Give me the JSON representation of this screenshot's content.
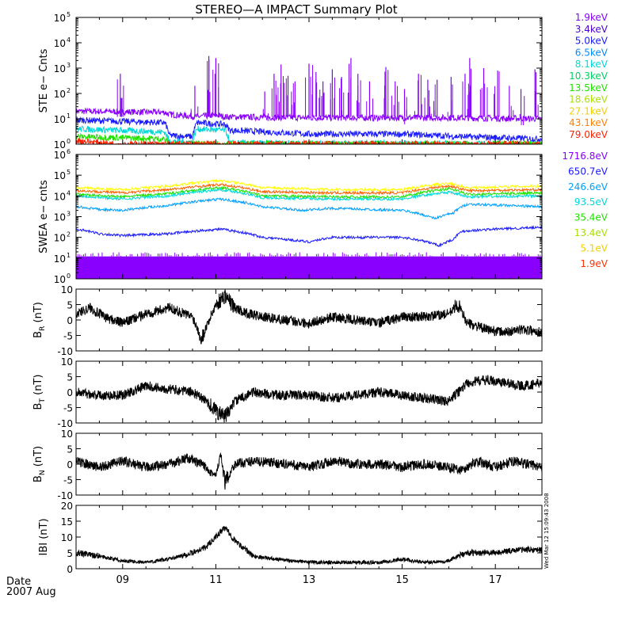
{
  "title": "STEREO—A IMPACT Summary Plot",
  "date_label": "Date",
  "date_value": "2007 Aug",
  "timestamp": "Wed Mar 12 15:09:43 2008",
  "chart_data": {
    "type": "line",
    "x_tick_labels": [
      "09",
      "11",
      "13",
      "15",
      "17"
    ],
    "x_tick_days": [
      9,
      11,
      13,
      15,
      17
    ],
    "xlim_days": [
      8.0,
      18.0
    ],
    "panels": [
      {
        "id": "ste",
        "ylabel": "STE e− Cnts",
        "yscale": "log",
        "ylim": [
          1,
          100000
        ],
        "y_tick_mantissa": [
          "10",
          "10",
          "10",
          "10",
          "10",
          "10"
        ],
        "y_tick_exponents": [
          "0",
          "1",
          "2",
          "3",
          "4",
          "5"
        ],
        "legend": [
          {
            "label": "1.9keV",
            "color": "#8a00ff"
          },
          {
            "label": "3.4keV",
            "color": "#4b00d4"
          },
          {
            "label": "5.0keV",
            "color": "#1a1aff"
          },
          {
            "label": "6.5keV",
            "color": "#008cff"
          },
          {
            "label": "8.1keV",
            "color": "#00d8d8"
          },
          {
            "label": "10.3keV",
            "color": "#00d060"
          },
          {
            "label": "13.5keV",
            "color": "#20e000"
          },
          {
            "label": "18.6keV",
            "color": "#a8e000"
          },
          {
            "label": "27.1keV",
            "color": "#f0d000"
          },
          {
            "label": "43.1keV",
            "color": "#ff8000"
          },
          {
            "label": "79.0keV",
            "color": "#ff2000"
          }
        ]
      },
      {
        "id": "swea",
        "ylabel": "SWEA e− cnts",
        "yscale": "log",
        "ylim": [
          1,
          1000000
        ],
        "y_tick_mantissa": [
          "10",
          "10",
          "10",
          "10",
          "10",
          "10",
          "10"
        ],
        "y_tick_exponents": [
          "0",
          "1",
          "2",
          "3",
          "4",
          "5",
          "6"
        ],
        "legend": [
          {
            "label": "1716.8eV",
            "color": "#8a00ff"
          },
          {
            "label": "650.7eV",
            "color": "#1a1aff"
          },
          {
            "label": "246.6eV",
            "color": "#00a0ff"
          },
          {
            "label": "93.5eV",
            "color": "#00d8d8"
          },
          {
            "label": "35.4eV",
            "color": "#20e000"
          },
          {
            "label": "13.4eV",
            "color": "#a8e000"
          },
          {
            "label": "5.1eV",
            "color": "#f0d000"
          },
          {
            "label": "1.9eV",
            "color": "#ff3000"
          }
        ]
      },
      {
        "id": "br",
        "ylabel_main": "B",
        "ylabel_sub": "R",
        "ylabel_unit": " (nT)",
        "ylim": [
          -10,
          10
        ],
        "y_ticks": [
          "-10",
          "-5",
          "0",
          "5",
          "10"
        ]
      },
      {
        "id": "bt",
        "ylabel_main": "B",
        "ylabel_sub": "T",
        "ylabel_unit": " (nT)",
        "ylim": [
          -10,
          10
        ],
        "y_ticks": [
          "-10",
          "-5",
          "0",
          "5",
          "10"
        ]
      },
      {
        "id": "bn",
        "ylabel_main": "B",
        "ylabel_sub": "N",
        "ylabel_unit": " (nT)",
        "ylim": [
          -10,
          10
        ],
        "y_ticks": [
          "-10",
          "-5",
          "0",
          "5",
          "10"
        ]
      },
      {
        "id": "bmag",
        "ylabel": "IBI (nT)",
        "ylim": [
          0,
          20
        ],
        "y_ticks": [
          "0",
          "5",
          "10",
          "15",
          "20"
        ]
      }
    ],
    "series_shapes": {
      "ste_levels": [
        {
          "color": "#8a00ff",
          "pts": [
            [
              8.0,
              20
            ],
            [
              9.9,
              18
            ],
            [
              10.0,
              15
            ],
            [
              10.6,
              12
            ],
            [
              11.0,
              14
            ],
            [
              11.2,
              12
            ],
            [
              13,
              11
            ],
            [
              15,
              11
            ],
            [
              16,
              11
            ],
            [
              18,
              10
            ]
          ]
        },
        {
          "color": "#1a1aff",
          "pts": [
            [
              8.0,
              9
            ],
            [
              9.9,
              7
            ],
            [
              10.0,
              2.2
            ],
            [
              10.5,
              2
            ],
            [
              10.6,
              7
            ],
            [
              11.2,
              6
            ],
            [
              11.3,
              3.5
            ],
            [
              13,
              2.5
            ],
            [
              15,
              2.5
            ],
            [
              16.2,
              2
            ],
            [
              18,
              1.6
            ]
          ]
        },
        {
          "color": "#00d8d8",
          "pts": [
            [
              8.0,
              4
            ],
            [
              9.9,
              3
            ],
            [
              10.0,
              1.3
            ],
            [
              10.5,
              1.2
            ],
            [
              10.6,
              4
            ],
            [
              11.2,
              3.5
            ],
            [
              11.3,
              1.1
            ],
            [
              18,
              1.0
            ]
          ]
        },
        {
          "color": "#20e000",
          "pts": [
            [
              8.0,
              2
            ],
            [
              9.9,
              1.6
            ],
            [
              10.0,
              1.0
            ],
            [
              18,
              1.0
            ]
          ]
        },
        {
          "color": "#ff2000",
          "pts": [
            [
              8.0,
              1.4
            ],
            [
              8.6,
              1.1
            ],
            [
              9.0,
              1.0
            ],
            [
              18,
              1.0
            ]
          ]
        }
      ],
      "ste_spikes": [
        [
          8.95,
          600
        ],
        [
          10.55,
          200
        ],
        [
          10.85,
          3000
        ],
        [
          11.0,
          2500
        ],
        [
          12.05,
          120
        ],
        [
          12.25,
          600
        ],
        [
          12.4,
          1400
        ],
        [
          12.55,
          500
        ],
        [
          12.7,
          300
        ],
        [
          13.0,
          1500
        ],
        [
          13.15,
          700
        ],
        [
          13.3,
          300
        ],
        [
          13.5,
          900
        ],
        [
          13.7,
          450
        ],
        [
          13.9,
          2500
        ],
        [
          14.05,
          600
        ],
        [
          14.3,
          300
        ],
        [
          14.65,
          1100
        ],
        [
          14.85,
          300
        ],
        [
          15.05,
          150
        ],
        [
          15.35,
          600
        ],
        [
          15.55,
          350
        ],
        [
          15.75,
          350
        ],
        [
          16.05,
          450
        ],
        [
          16.35,
          600
        ],
        [
          16.45,
          2500
        ],
        [
          16.75,
          1000
        ],
        [
          17.05,
          800
        ],
        [
          17.3,
          200
        ],
        [
          17.55,
          150
        ],
        [
          17.85,
          900
        ]
      ],
      "swea_levels": [
        {
          "color": "#ffff00",
          "pts": [
            [
              8.0,
              25000
            ],
            [
              9,
              20000
            ],
            [
              10,
              30000
            ],
            [
              11.1,
              55000
            ],
            [
              12,
              25000
            ],
            [
              13.5,
              20000
            ],
            [
              15,
              20000
            ],
            [
              16.0,
              40000
            ],
            [
              16.4,
              25000
            ],
            [
              18,
              30000
            ]
          ]
        },
        {
          "color": "#ff6000",
          "pts": [
            [
              8.0,
              18000
            ],
            [
              9,
              14000
            ],
            [
              10,
              20000
            ],
            [
              11.1,
              35000
            ],
            [
              12,
              16000
            ],
            [
              13.5,
              14000
            ],
            [
              15,
              14000
            ],
            [
              16.0,
              30000
            ],
            [
              16.4,
              18000
            ],
            [
              18,
              20000
            ]
          ]
        },
        {
          "color": "#20e000",
          "pts": [
            [
              8.0,
              12000
            ],
            [
              9,
              9000
            ],
            [
              10,
              13000
            ],
            [
              11.1,
              25000
            ],
            [
              12,
              10000
            ],
            [
              13.5,
              9000
            ],
            [
              15,
              9000
            ],
            [
              16.0,
              22000
            ],
            [
              16.4,
              12000
            ],
            [
              18,
              14000
            ]
          ]
        },
        {
          "color": "#00d8d8",
          "pts": [
            [
              8.0,
              10000
            ],
            [
              9,
              7000
            ],
            [
              10,
              10000
            ],
            [
              11.1,
              20000
            ],
            [
              12,
              8000
            ],
            [
              13.5,
              7000
            ],
            [
              15,
              7000
            ],
            [
              16.0,
              15000
            ],
            [
              16.4,
              9000
            ],
            [
              18,
              10000
            ]
          ]
        },
        {
          "color": "#00a0ff",
          "pts": [
            [
              8.0,
              3000
            ],
            [
              8.5,
              2200
            ],
            [
              9,
              2000
            ],
            [
              10,
              3500
            ],
            [
              11.1,
              7000
            ],
            [
              12,
              3000
            ],
            [
              12.8,
              2000
            ],
            [
              13.5,
              2500
            ],
            [
              15,
              2000
            ],
            [
              15.7,
              800
            ],
            [
              16.1,
              1500
            ],
            [
              16.4,
              4000
            ],
            [
              18,
              3000
            ]
          ]
        },
        {
          "color": "#1a1aff",
          "pts": [
            [
              8.0,
              250
            ],
            [
              8.5,
              150
            ],
            [
              9,
              120
            ],
            [
              10,
              150
            ],
            [
              11.1,
              250
            ],
            [
              12,
              100
            ],
            [
              13,
              60
            ],
            [
              13.5,
              100
            ],
            [
              15,
              100
            ],
            [
              15.8,
              40
            ],
            [
              16.1,
              80
            ],
            [
              16.3,
              200
            ],
            [
              17,
              250
            ],
            [
              18,
              300
            ]
          ]
        }
      ],
      "swea_band": {
        "color": "#8a00ff",
        "low": 1,
        "high": 12
      },
      "br": [
        [
          8.0,
          2
        ],
        [
          8.3,
          4
        ],
        [
          8.6,
          1
        ],
        [
          9.0,
          -1
        ],
        [
          9.5,
          2
        ],
        [
          10.0,
          4
        ],
        [
          10.5,
          1
        ],
        [
          10.7,
          -6
        ],
        [
          10.8,
          -2
        ],
        [
          11.0,
          5
        ],
        [
          11.2,
          8
        ],
        [
          11.4,
          4
        ],
        [
          11.7,
          2
        ],
        [
          12.0,
          1
        ],
        [
          12.5,
          0
        ],
        [
          13.0,
          -1
        ],
        [
          13.5,
          1
        ],
        [
          14.0,
          0
        ],
        [
          14.5,
          -1
        ],
        [
          15.0,
          1
        ],
        [
          15.5,
          1
        ],
        [
          16.0,
          2
        ],
        [
          16.2,
          5
        ],
        [
          16.4,
          -1
        ],
        [
          16.8,
          -3
        ],
        [
          17.2,
          -4
        ],
        [
          17.6,
          -3
        ],
        [
          18,
          -4
        ]
      ],
      "bt": [
        [
          8.0,
          0
        ],
        [
          8.5,
          -1
        ],
        [
          9.0,
          -1
        ],
        [
          9.5,
          2
        ],
        [
          10.0,
          1
        ],
        [
          10.5,
          0
        ],
        [
          10.8,
          -3
        ],
        [
          11.0,
          -6
        ],
        [
          11.2,
          -8
        ],
        [
          11.4,
          -3
        ],
        [
          11.8,
          0
        ],
        [
          12.3,
          -1
        ],
        [
          13.0,
          -1
        ],
        [
          13.5,
          -2
        ],
        [
          14.0,
          -1
        ],
        [
          14.5,
          0
        ],
        [
          15.0,
          -1
        ],
        [
          15.5,
          -2
        ],
        [
          16.0,
          -3
        ],
        [
          16.2,
          0
        ],
        [
          16.4,
          3
        ],
        [
          16.8,
          4
        ],
        [
          17.2,
          3
        ],
        [
          17.6,
          2
        ],
        [
          18,
          3
        ]
      ],
      "bn": [
        [
          8.0,
          1
        ],
        [
          8.5,
          -1
        ],
        [
          9.0,
          1
        ],
        [
          9.5,
          -1
        ],
        [
          10.0,
          0
        ],
        [
          10.4,
          2
        ],
        [
          10.8,
          -1
        ],
        [
          11.0,
          -4
        ],
        [
          11.1,
          3
        ],
        [
          11.2,
          -6
        ],
        [
          11.4,
          0
        ],
        [
          11.8,
          1
        ],
        [
          12.5,
          0
        ],
        [
          13.0,
          -1
        ],
        [
          13.5,
          1
        ],
        [
          14.0,
          0
        ],
        [
          14.5,
          0
        ],
        [
          15.0,
          -1
        ],
        [
          15.5,
          0
        ],
        [
          16.0,
          -1
        ],
        [
          16.3,
          -2
        ],
        [
          16.6,
          1
        ],
        [
          17.0,
          -1
        ],
        [
          17.4,
          1
        ],
        [
          18,
          -1
        ]
      ],
      "bmag": [
        [
          8.0,
          5
        ],
        [
          8.5,
          4
        ],
        [
          9.0,
          2.5
        ],
        [
          9.5,
          2
        ],
        [
          10.0,
          3
        ],
        [
          10.5,
          5
        ],
        [
          10.8,
          7
        ],
        [
          11.0,
          10
        ],
        [
          11.2,
          13
        ],
        [
          11.4,
          9
        ],
        [
          11.8,
          4
        ],
        [
          12.3,
          3
        ],
        [
          13.0,
          2
        ],
        [
          13.5,
          2
        ],
        [
          14.0,
          2
        ],
        [
          14.5,
          2
        ],
        [
          15.0,
          3
        ],
        [
          15.5,
          2
        ],
        [
          16.0,
          2.5
        ],
        [
          16.2,
          4
        ],
        [
          16.4,
          5
        ],
        [
          17.0,
          5
        ],
        [
          17.5,
          6
        ],
        [
          18,
          6
        ]
      ]
    }
  }
}
